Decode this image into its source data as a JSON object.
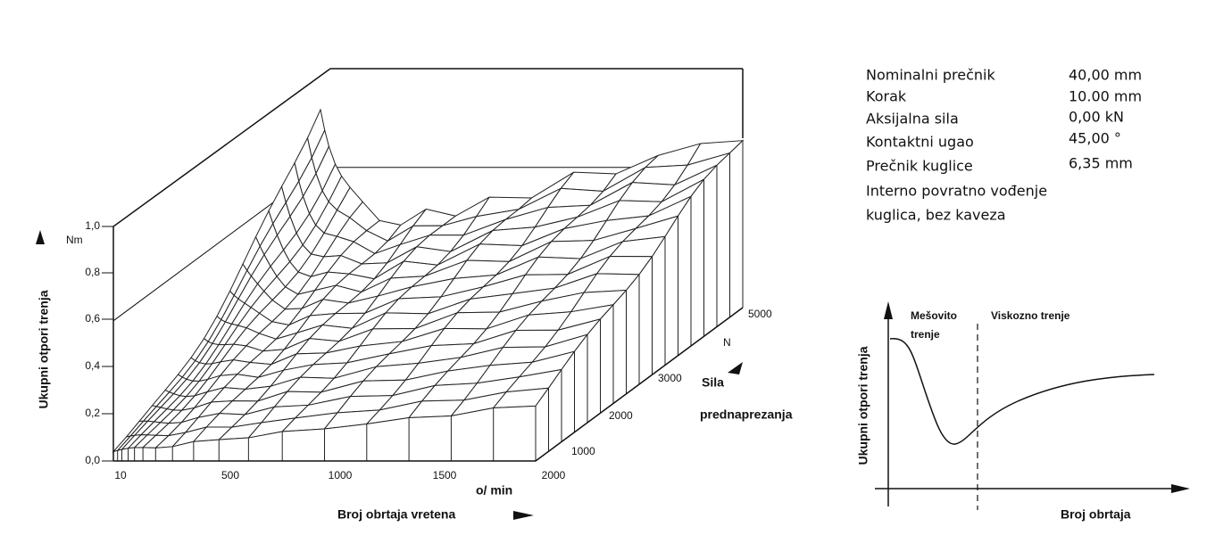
{
  "surface_plot": {
    "y_axis_label": "Ukupni otpori trenja",
    "y_unit": "Nm",
    "y_ticks": [
      "0,0",
      "0,2",
      "0,4",
      "0,6",
      "0,8",
      "1,0"
    ],
    "x_ticks": [
      "10",
      "500",
      "1000",
      "1500",
      "2000"
    ],
    "x_unit": "o/ min",
    "x_axis_label": "Broj obrtaja vretena",
    "depth_ticks": [
      "1000",
      "2000",
      "3000",
      "5000"
    ],
    "depth_unit": "N",
    "depth_axis_label": [
      "Sila",
      "prednaprezanja"
    ]
  },
  "parameters": {
    "rows": [
      [
        "Nominalni prečnik",
        "40,00 mm"
      ],
      [
        "Korak",
        "10.00 mm"
      ],
      [
        "Aksijalna sila",
        "0,00 kN"
      ],
      [
        "Kontaktni ugao",
        "45,00 °"
      ],
      [
        "Prečnik kuglice",
        "6,35 mm"
      ]
    ],
    "note": [
      "Interno povratno vođenje",
      "kuglica, bez kaveza"
    ]
  },
  "schematic": {
    "y_axis_label": "Ukupni otpori trenja",
    "x_axis_label": "Broj obrtaja",
    "mixed_region": [
      "Mešovito",
      "trenje"
    ],
    "viscous_region": "Viskozno trenje"
  }
}
